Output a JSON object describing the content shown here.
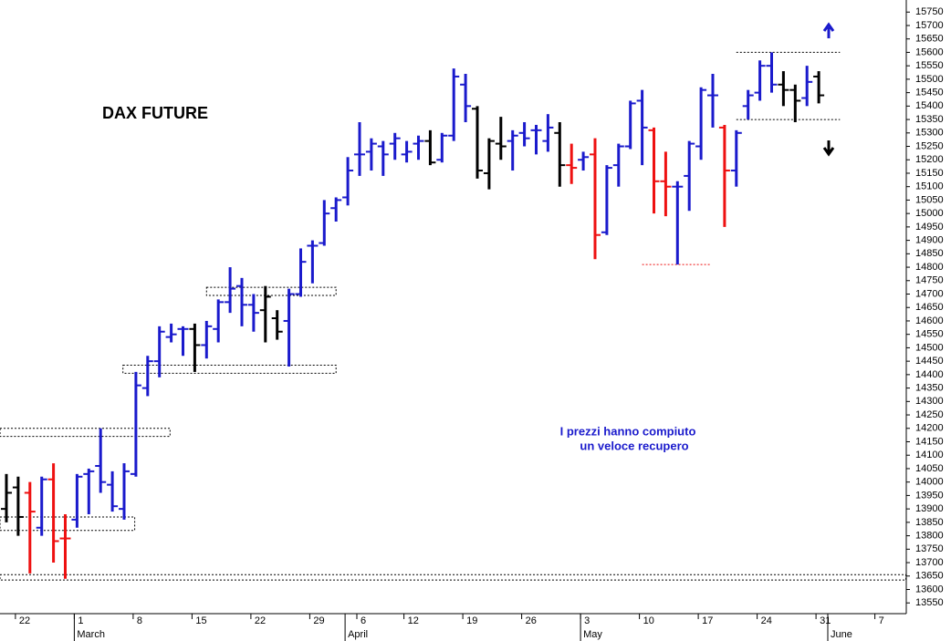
{
  "chart_data": {
    "type": "ohlc",
    "title": "DAX FUTURE",
    "annotations": [
      "I prezzi hanno compiuto",
      "un veloce recupero"
    ],
    "x": [
      "02-19",
      "02-22",
      "02-23",
      "02-24",
      "02-25",
      "02-26",
      "03-01",
      "03-02",
      "03-03",
      "03-04",
      "03-05",
      "03-08",
      "03-09",
      "03-10",
      "03-11",
      "03-12",
      "03-15",
      "03-16",
      "03-17",
      "03-18",
      "03-19",
      "03-22",
      "03-23",
      "03-24",
      "03-25",
      "03-26",
      "03-29",
      "03-30",
      "03-31",
      "04-01",
      "04-06",
      "04-07",
      "04-08",
      "04-09",
      "04-12",
      "04-13",
      "04-14",
      "04-15",
      "04-16",
      "04-19",
      "04-20",
      "04-21",
      "04-22",
      "04-23",
      "04-26",
      "04-27",
      "04-28",
      "04-29",
      "04-30",
      "05-03",
      "05-04",
      "05-05",
      "05-06",
      "05-07",
      "05-10",
      "05-11",
      "05-12",
      "05-13",
      "05-14",
      "05-17",
      "05-18",
      "05-19",
      "05-20",
      "05-21",
      "05-24",
      "05-25",
      "05-26",
      "05-27",
      "05-28",
      "05-31"
    ],
    "open": [
      13900,
      13980,
      13960,
      13830,
      14010,
      13790,
      13860,
      14030,
      14060,
      13990,
      13900,
      14030,
      14350,
      14450,
      14540,
      14570,
      14570,
      14510,
      14570,
      14670,
      14730,
      14660,
      14640,
      14610,
      14600,
      14700,
      14880,
      14890,
      15020,
      15060,
      15220,
      15230,
      15250,
      15260,
      15220,
      15260,
      15270,
      15200,
      15290,
      15480,
      15390,
      15150,
      15260,
      15270,
      15300,
      15310,
      15270,
      15300,
      15180,
      15200,
      15220,
      14930,
      15180,
      15250,
      15420,
      15310,
      15120,
      15100,
      15140,
      15250,
      15440,
      15320,
      15160,
      15400,
      15450,
      15550,
      15480,
      15460,
      15430,
      15510
    ],
    "high": [
      14030,
      14020,
      14000,
      14020,
      14070,
      13880,
      14030,
      14050,
      14200,
      14040,
      14070,
      14410,
      14470,
      14580,
      14590,
      14580,
      14590,
      14600,
      14680,
      14800,
      14760,
      14700,
      14730,
      14640,
      14720,
      14870,
      14900,
      15050,
      15060,
      15210,
      15340,
      15280,
      15270,
      15300,
      15270,
      15290,
      15310,
      15300,
      15540,
      15520,
      15400,
      15280,
      15360,
      15310,
      15340,
      15330,
      15370,
      15340,
      15260,
      15230,
      15280,
      15180,
      15260,
      15420,
      15460,
      15320,
      15230,
      15120,
      15270,
      15470,
      15520,
      15330,
      15310,
      15460,
      15570,
      15600,
      15530,
      15480,
      15550,
      15530
    ],
    "low": [
      13850,
      13800,
      13660,
      13800,
      13700,
      13640,
      13830,
      13880,
      13960,
      13890,
      13860,
      14020,
      14320,
      14390,
      14520,
      14470,
      14410,
      14460,
      14520,
      14630,
      14580,
      14560,
      14520,
      14530,
      14430,
      14690,
      14740,
      14880,
      14970,
      15030,
      15140,
      15160,
      15140,
      15200,
      15190,
      15200,
      15180,
      15190,
      15270,
      15340,
      15130,
      15090,
      15200,
      15160,
      15250,
      15220,
      15230,
      15100,
      15110,
      15160,
      14830,
      14920,
      15100,
      15240,
      15180,
      15000,
      14990,
      14810,
      15010,
      15200,
      15320,
      14950,
      15100,
      15350,
      15420,
      15450,
      15400,
      15340,
      15400,
      15410
    ],
    "close": [
      13960,
      13870,
      13890,
      14010,
      13780,
      13790,
      14020,
      14040,
      14000,
      13910,
      14040,
      14360,
      14450,
      14560,
      14550,
      14570,
      14510,
      14580,
      14670,
      14720,
      14660,
      14630,
      14690,
      14560,
      14700,
      14820,
      14880,
      15000,
      15050,
      15160,
      15220,
      15260,
      15220,
      15280,
      15230,
      15270,
      15190,
      15290,
      15510,
      15400,
      15160,
      15270,
      15250,
      15290,
      15280,
      15310,
      15320,
      15180,
      15170,
      15210,
      14920,
      15170,
      15250,
      15410,
      15320,
      15120,
      15100,
      15100,
      15260,
      15460,
      15440,
      15160,
      15300,
      15440,
      15550,
      15480,
      15460,
      15420,
      15490,
      15440
    ],
    "bar_colors": [
      "k",
      "k",
      "r",
      "b",
      "r",
      "r",
      "b",
      "b",
      "b",
      "b",
      "b",
      "b",
      "b",
      "b",
      "b",
      "b",
      "k",
      "b",
      "b",
      "b",
      "b",
      "b",
      "k",
      "k",
      "b",
      "b",
      "b",
      "b",
      "b",
      "b",
      "b",
      "b",
      "b",
      "b",
      "b",
      "b",
      "k",
      "b",
      "b",
      "b",
      "k",
      "k",
      "k",
      "b",
      "b",
      "b",
      "b",
      "k",
      "r",
      "b",
      "r",
      "b",
      "b",
      "b",
      "b",
      "r",
      "r",
      "b",
      "b",
      "b",
      "b",
      "r",
      "b",
      "b",
      "b",
      "b",
      "k",
      "k",
      "b",
      "k"
    ],
    "palette": {
      "b": "#1a1acc",
      "k": "#000000",
      "r": "#ee1111"
    },
    "ylim": [
      13510,
      15795
    ],
    "yticks": [
      13550,
      13600,
      13650,
      13700,
      13750,
      13800,
      13850,
      13900,
      13950,
      14000,
      14050,
      14100,
      14150,
      14200,
      14250,
      14300,
      14350,
      14400,
      14450,
      14500,
      14550,
      14600,
      14650,
      14700,
      14750,
      14800,
      14850,
      14900,
      14950,
      15000,
      15050,
      15100,
      15150,
      15200,
      15250,
      15300,
      15350,
      15400,
      15450,
      15500,
      15550,
      15600,
      15650,
      15700,
      15750
    ],
    "xticks": [
      {
        "value": 1,
        "label": "22"
      },
      {
        "value": 6,
        "label": "1"
      },
      {
        "value": 11,
        "label": "8"
      },
      {
        "value": 16,
        "label": "15"
      },
      {
        "value": 21,
        "label": "22"
      },
      {
        "value": 26,
        "label": "29"
      },
      {
        "value": 30,
        "label": "6"
      },
      {
        "value": 34,
        "label": "12"
      },
      {
        "value": 39,
        "label": "19"
      },
      {
        "value": 44,
        "label": "26"
      },
      {
        "value": 49,
        "label": "3"
      },
      {
        "value": 54,
        "label": "10"
      },
      {
        "value": 59,
        "label": "17"
      },
      {
        "value": 64,
        "label": "24"
      },
      {
        "value": 69,
        "label": "31"
      },
      {
        "value": 74,
        "label": "7"
      }
    ],
    "months": [
      {
        "value": 6,
        "label": "March"
      },
      {
        "value": 29,
        "label": "April"
      },
      {
        "value": 49,
        "label": "May"
      },
      {
        "value": 70,
        "label": "June"
      }
    ],
    "zones": [
      {
        "x": [
          -0.54,
          13.9
        ],
        "y": [
          14170,
          14200
        ]
      },
      {
        "x": [
          -0.54,
          10.9
        ],
        "y": [
          13820,
          13870
        ]
      },
      {
        "x": [
          9.9,
          28
        ],
        "y": [
          14405,
          14435
        ]
      },
      {
        "x": [
          17,
          28
        ],
        "y": [
          14695,
          14725
        ]
      },
      {
        "x": [
          -0.54,
          76.4
        ],
        "y": [
          13635,
          13655
        ]
      }
    ],
    "levels": [
      {
        "x": [
          54,
          59.8
        ],
        "y": 14810,
        "color": "#ee1111"
      },
      {
        "x": [
          62,
          70.8
        ],
        "y": 15600,
        "color": "#000000"
      },
      {
        "x": [
          62,
          70.8
        ],
        "y": 15350,
        "color": "#000000"
      }
    ]
  }
}
